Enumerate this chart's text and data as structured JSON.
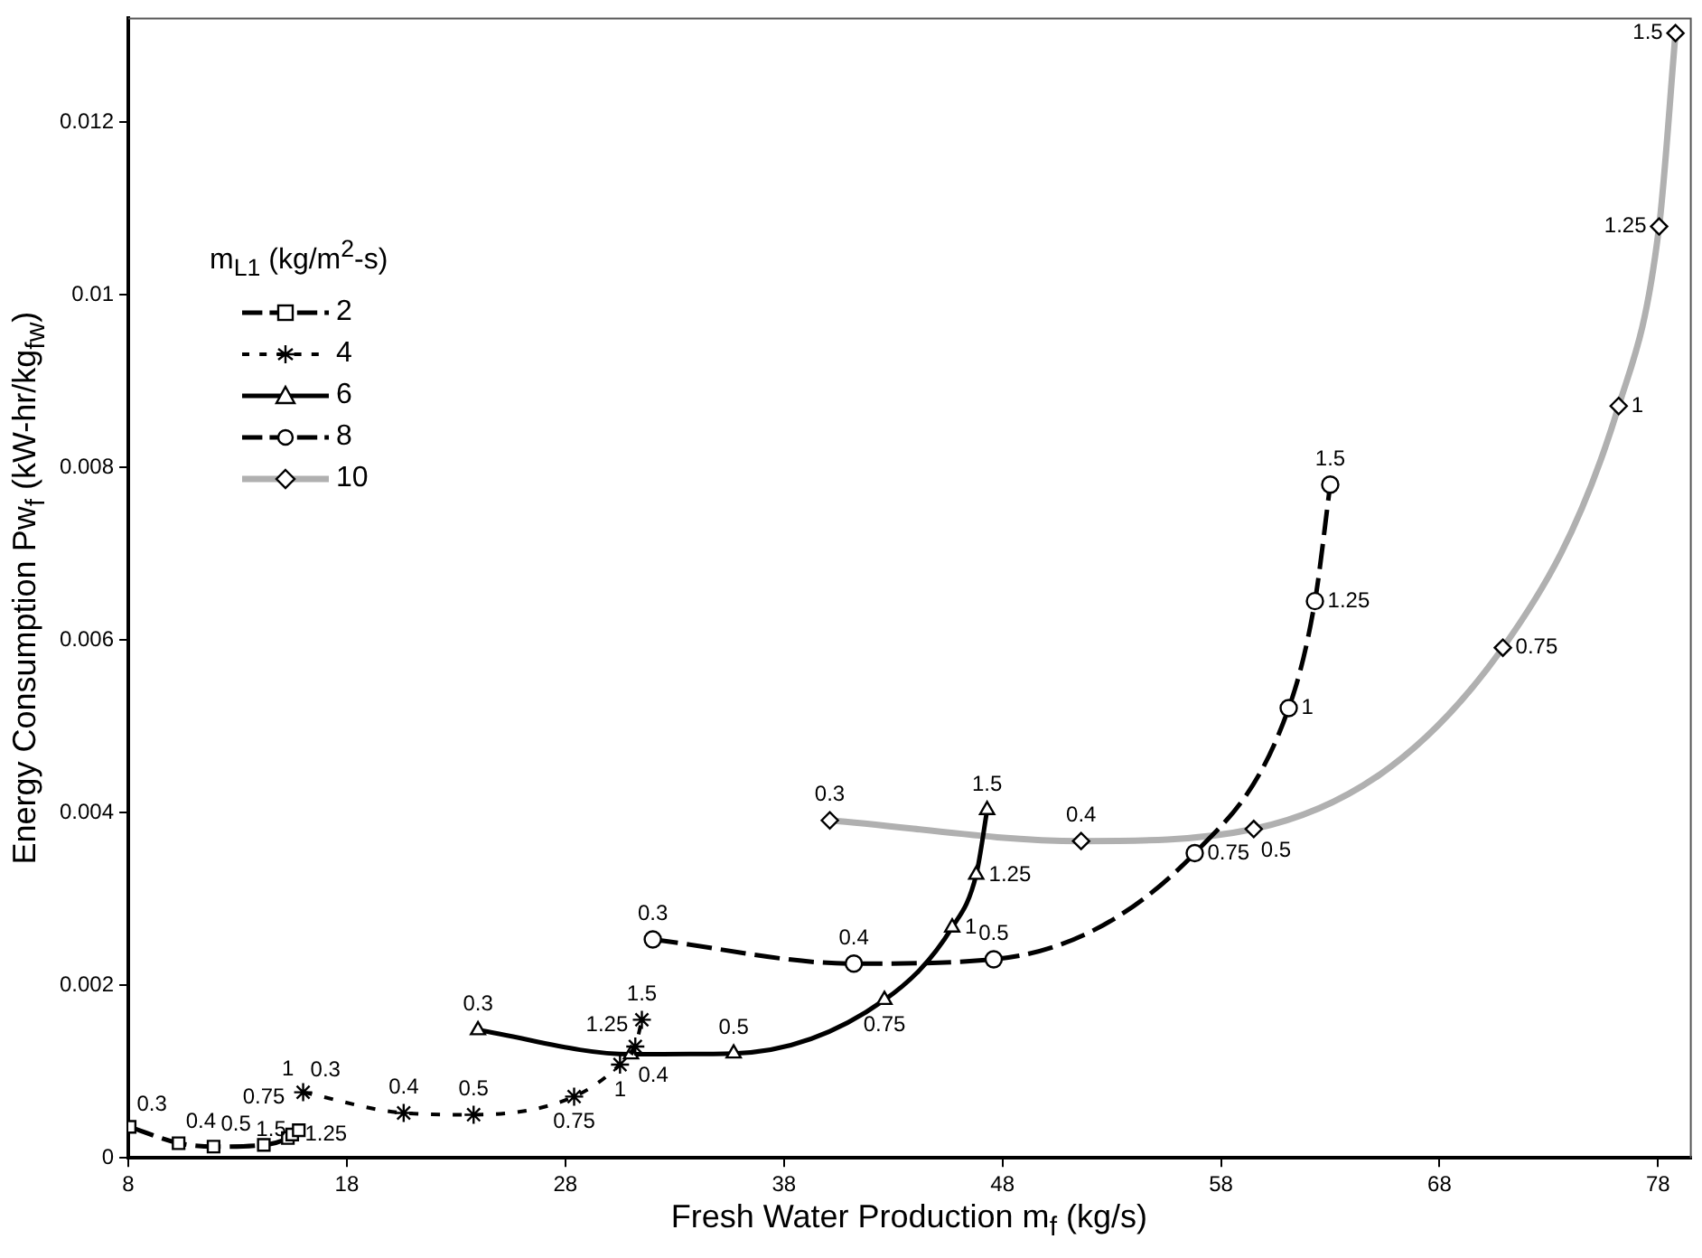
{
  "chart_data": {
    "type": "line",
    "xlabel": "Fresh Water Production m$_{f}$ (kg/s)",
    "ylabel": "Energy Consumption Pw$_{f}$ (kW-hr/kg$_{fw}$)",
    "legend_title": "m$_{L1}$ (kg/m$^{2}$-s)",
    "legend": "top left",
    "grid": false,
    "xlim": [
      8,
      79.5
    ],
    "xticks": [
      8,
      18,
      28,
      38,
      48,
      58,
      68,
      78
    ],
    "ylim": [
      0,
      0.0132
    ],
    "yticks": [
      0,
      0.002,
      0.004,
      0.006,
      0.008,
      0.01,
      0.012
    ],
    "series": [
      {
        "name": "2",
        "color": "#000000",
        "marker": "square",
        "line_style": "dashed",
        "x": [
          8.06,
          10.3,
          11.9,
          14.2,
          15.3,
          15.5,
          15.8
        ],
        "values": [
          0.00036,
          0.00017,
          0.00013,
          0.00015,
          0.00023,
          0.00027,
          0.00032
        ]
      },
      {
        "name": "4",
        "color": "#000000",
        "marker": "cross",
        "line_style": "dotted",
        "x": [
          16.0,
          20.6,
          23.8,
          28.4,
          30.5,
          31.2,
          31.5
        ],
        "values": [
          0.00076,
          0.00052,
          0.0005,
          0.00071,
          0.00108,
          0.00129,
          0.0016
        ]
      },
      {
        "name": "6",
        "color": "#000000",
        "marker": "triangle",
        "line_style": "solid",
        "x": [
          24.0,
          31.0,
          35.7,
          42.6,
          45.7,
          46.8,
          47.3
        ],
        "values": [
          0.00148,
          0.0012,
          0.00121,
          0.00183,
          0.00267,
          0.00328,
          0.00403
        ]
      },
      {
        "name": "8",
        "color": "#000000",
        "marker": "circle",
        "line_style": "dashed",
        "x": [
          32.0,
          41.2,
          47.6,
          56.8,
          61.1,
          62.3,
          63.0
        ],
        "values": [
          0.00253,
          0.00225,
          0.0023,
          0.00353,
          0.00521,
          0.00645,
          0.0078
        ]
      },
      {
        "name": "10",
        "color": "#b0b0b0",
        "marker": "diamond",
        "line_style": "solid",
        "x": [
          40.1,
          51.6,
          59.5,
          70.9,
          76.2,
          78.05,
          78.8
        ],
        "values": [
          0.00391,
          0.00367,
          0.00381,
          0.00591,
          0.00871,
          0.01079,
          0.01303
        ]
      }
    ],
    "annotations": [
      {
        "text": "0.3",
        "x": 8.06,
        "y": 0.00036
      },
      {
        "text": "0.4",
        "x": 10.3,
        "y": 0.00017
      },
      {
        "text": "0.5",
        "x": 11.9,
        "y": 0.00013
      },
      {
        "text": "0.75",
        "x": 14.2,
        "y": 0.00015
      },
      {
        "text": "1",
        "x": 15.3,
        "y": 0.00023
      },
      {
        "text": "1.25",
        "x": 15.5,
        "y": 0.00027
      },
      {
        "text": "1.5",
        "x": 15.8,
        "y": 0.00032
      },
      {
        "text": "0.3",
        "x": 16.0,
        "y": 0.00076
      },
      {
        "text": "0.4",
        "x": 20.6,
        "y": 0.00052
      },
      {
        "text": "0.5",
        "x": 23.8,
        "y": 0.0005
      },
      {
        "text": "0.75",
        "x": 28.4,
        "y": 0.00071
      },
      {
        "text": "1",
        "x": 30.5,
        "y": 0.00108
      },
      {
        "text": "1.25",
        "x": 31.2,
        "y": 0.00129
      },
      {
        "text": "1.5",
        "x": 31.5,
        "y": 0.0016
      },
      {
        "text": "0.3",
        "x": 24.0,
        "y": 0.00148
      },
      {
        "text": "0.4",
        "x": 31.0,
        "y": 0.0012
      },
      {
        "text": "0.5",
        "x": 35.7,
        "y": 0.00121
      },
      {
        "text": "0.75",
        "x": 42.6,
        "y": 0.00183
      },
      {
        "text": "1",
        "x": 45.7,
        "y": 0.00267
      },
      {
        "text": "1.25",
        "x": 46.8,
        "y": 0.00328
      },
      {
        "text": "1.5",
        "x": 47.3,
        "y": 0.00403
      },
      {
        "text": "0.3",
        "x": 32.0,
        "y": 0.00253
      },
      {
        "text": "0.4",
        "x": 41.2,
        "y": 0.00225
      },
      {
        "text": "0.5",
        "x": 47.6,
        "y": 0.0023
      },
      {
        "text": "0.75",
        "x": 56.8,
        "y": 0.00353
      },
      {
        "text": "1",
        "x": 61.1,
        "y": 0.00521
      },
      {
        "text": "1.25",
        "x": 62.3,
        "y": 0.00645
      },
      {
        "text": "1.5",
        "x": 63.0,
        "y": 0.0078
      },
      {
        "text": "0.3",
        "x": 40.1,
        "y": 0.00391
      },
      {
        "text": "0.4",
        "x": 51.6,
        "y": 0.00367
      },
      {
        "text": "0.5",
        "x": 59.5,
        "y": 0.00381
      },
      {
        "text": "0.75",
        "x": 70.9,
        "y": 0.00591
      },
      {
        "text": "1",
        "x": 76.2,
        "y": 0.00871
      },
      {
        "text": "1.25",
        "x": 78.05,
        "y": 0.01079
      },
      {
        "text": "1.5",
        "x": 78.8,
        "y": 0.01303
      }
    ]
  }
}
